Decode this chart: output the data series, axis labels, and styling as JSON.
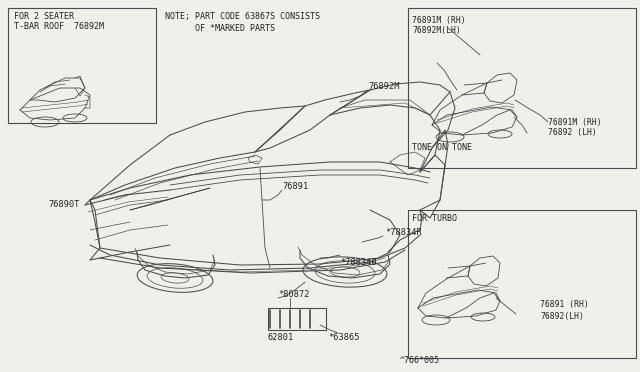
{
  "bg_color": "#f0f0eb",
  "line_color": "#4a4a4a",
  "text_color": "#222222",
  "footer_text": "^766*005",
  "note_line1": "NOTE; PART CODE 63867S CONSISTS",
  "note_line2": "      OF *MARKED PARTS",
  "box1_line1": "FOR 2 SEATER",
  "box1_line2": "T-BAR ROOF  76892M",
  "box2_title": "TONE ON TONE",
  "box2_label1a": "76891M (RH)",
  "box2_label1b": "76892M(LH)",
  "box2_label2a": "76891M (RH)",
  "box2_label2b": "76892 (LH)",
  "box3_title": "FOR TURBO",
  "box3_label1": "76891 (RH)",
  "box3_label2": "76892(LH)",
  "label_76892M": "76892M",
  "label_76891": "76891",
  "label_76890T": "76890T",
  "label_78834R": "*78834R",
  "label_788340": "*788340",
  "label_80872": "*80872",
  "label_62801": "62801",
  "label_63865": "*63865"
}
